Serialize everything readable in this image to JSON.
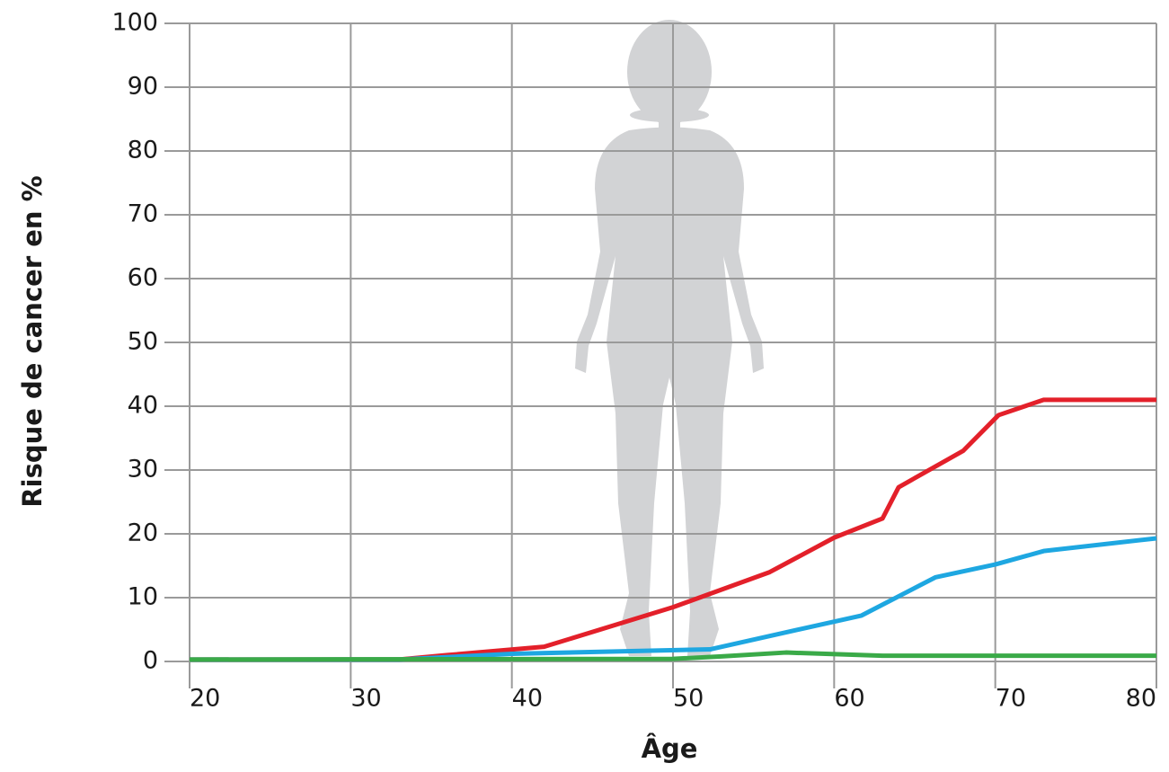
{
  "chart_data": {
    "type": "line",
    "x_label": "Âge",
    "y_label": "Risque de cancer en %",
    "xlim": [
      20,
      80
    ],
    "xticks": [
      20,
      30,
      40,
      50,
      60,
      70,
      80
    ],
    "ylim": [
      0,
      100
    ],
    "yticks": [
      0,
      10,
      20,
      30,
      40,
      50,
      60,
      70,
      80,
      90,
      100
    ],
    "grid": true,
    "series": [
      {
        "color": "#e3202a",
        "x": [
          20,
          33,
          36,
          42,
          50,
          56,
          60,
          63,
          64,
          68,
          70.2,
          73,
          80
        ],
        "values": [
          0.3,
          0.3,
          1,
          2.3,
          8.5,
          14,
          19.4,
          22.4,
          27.3,
          33,
          38.6,
          41,
          41
        ]
      },
      {
        "color": "#1ea7e1",
        "x": [
          20,
          33,
          40,
          52.3,
          61.7,
          66.3,
          70,
          73,
          80
        ],
        "values": [
          0.3,
          0.3,
          1.2,
          1.9,
          7.2,
          13.2,
          15.2,
          17.3,
          19.3
        ]
      },
      {
        "color": "#3aaa48",
        "x": [
          20,
          50,
          53,
          57,
          63,
          80
        ],
        "values": [
          0.3,
          0.4,
          0.8,
          1.4,
          0.9,
          0.9
        ]
      }
    ]
  }
}
